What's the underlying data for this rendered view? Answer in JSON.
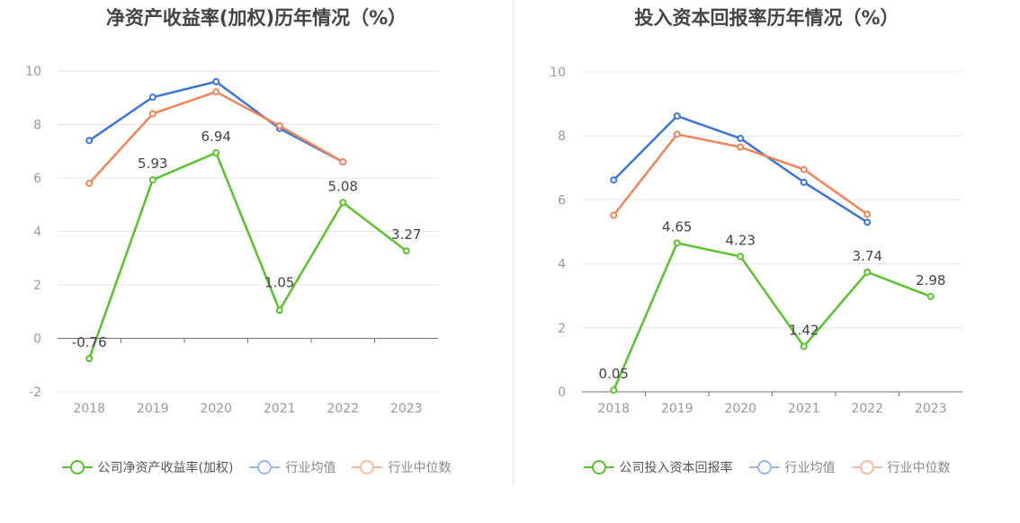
{
  "chart_data": [
    {
      "type": "line",
      "title": "净资产收益率(加权)历年情况（%）",
      "categories": [
        "2018",
        "2019",
        "2020",
        "2021",
        "2022",
        "2023"
      ],
      "ylim": [
        -2,
        10
      ],
      "yticks": [
        "-2",
        "0",
        "2",
        "4",
        "6",
        "8",
        "10"
      ],
      "grid": true,
      "legend_position": "bottom",
      "series": [
        {
          "name": "公司净资产收益率(加权)",
          "color": "#5ac12f",
          "values": [
            -0.76,
            5.93,
            6.94,
            1.05,
            5.08,
            3.27
          ],
          "labels": [
            "-0.76",
            "5.93",
            "6.94",
            "1.05",
            "5.08",
            "3.27"
          ]
        },
        {
          "name": "行业均值",
          "color": "#3e74d6",
          "values": [
            7.4,
            9.02,
            9.6,
            7.85,
            6.6,
            null
          ]
        },
        {
          "name": "行业中位数",
          "color": "#f0845a",
          "values": [
            5.8,
            8.4,
            9.22,
            7.95,
            6.6,
            null
          ]
        }
      ]
    },
    {
      "type": "line",
      "title": "投入资本回报率历年情况（%）",
      "categories": [
        "2018",
        "2019",
        "2020",
        "2021",
        "2022",
        "2023"
      ],
      "ylim": [
        0,
        10
      ],
      "yticks": [
        "0",
        "2",
        "4",
        "6",
        "8",
        "10"
      ],
      "grid": true,
      "legend_position": "bottom",
      "series": [
        {
          "name": "公司投入资本回报率",
          "color": "#5ac12f",
          "values": [
            0.05,
            4.65,
            4.23,
            1.42,
            3.74,
            2.98
          ],
          "labels": [
            "0.05",
            "4.65",
            "4.23",
            "1.42",
            "3.74",
            "2.98"
          ]
        },
        {
          "name": "行业均值",
          "color": "#3e74d6",
          "values": [
            6.62,
            8.62,
            7.92,
            6.55,
            5.3,
            null
          ]
        },
        {
          "name": "行业中位数",
          "color": "#f0845a",
          "values": [
            5.52,
            8.05,
            7.65,
            6.95,
            5.55,
            null
          ]
        }
      ]
    }
  ]
}
